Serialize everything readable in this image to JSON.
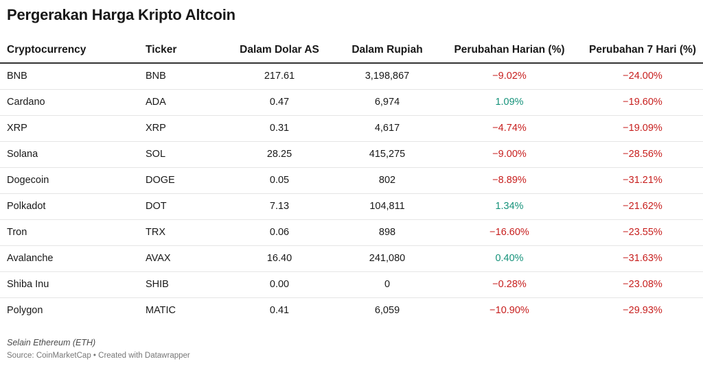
{
  "title": "Pergerakan Harga Kripto Altcoin",
  "columns": [
    "Cryptocurrency",
    "Ticker",
    "Dalam Dolar AS",
    "Dalam Rupiah",
    "Perubahan Harian (%)",
    "Perubahan 7 Hari (%)"
  ],
  "rows": [
    {
      "name": "BNB",
      "ticker": "BNB",
      "usd": "217.61",
      "idr": "3,198,867",
      "daily": "−9.02%",
      "weekly": "−24.00%"
    },
    {
      "name": "Cardano",
      "ticker": "ADA",
      "usd": "0.47",
      "idr": "6,974",
      "daily": "1.09%",
      "weekly": "−19.60%"
    },
    {
      "name": "XRP",
      "ticker": "XRP",
      "usd": "0.31",
      "idr": "4,617",
      "daily": "−4.74%",
      "weekly": "−19.09%"
    },
    {
      "name": "Solana",
      "ticker": "SOL",
      "usd": "28.25",
      "idr": "415,275",
      "daily": "−9.00%",
      "weekly": "−28.56%"
    },
    {
      "name": "Dogecoin",
      "ticker": "DOGE",
      "usd": "0.05",
      "idr": "802",
      "daily": "−8.89%",
      "weekly": "−31.21%"
    },
    {
      "name": "Polkadot",
      "ticker": "DOT",
      "usd": "7.13",
      "idr": "104,811",
      "daily": "1.34%",
      "weekly": "−21.62%"
    },
    {
      "name": "Tron",
      "ticker": "TRX",
      "usd": "0.06",
      "idr": "898",
      "daily": "−16.60%",
      "weekly": "−23.55%"
    },
    {
      "name": "Avalanche",
      "ticker": "AVAX",
      "usd": "16.40",
      "idr": "241,080",
      "daily": "0.40%",
      "weekly": "−31.63%"
    },
    {
      "name": "Shiba Inu",
      "ticker": "SHIB",
      "usd": "0.00",
      "idr": "0",
      "daily": "−0.28%",
      "weekly": "−23.08%"
    },
    {
      "name": "Polygon",
      "ticker": "MATIC",
      "usd": "0.41",
      "idr": "6,059",
      "daily": "−10.90%",
      "weekly": "−29.93%"
    }
  ],
  "note": "Selain Ethereum (ETH)",
  "source": "Source: CoinMarketCap • Created with Datawrapper",
  "colors": {
    "negative": "#c71e1d",
    "positive": "#15927a",
    "header_rule": "#333333",
    "row_rule": "#e5e5e5"
  },
  "chart_data": {
    "type": "table",
    "title": "Pergerakan Harga Kripto Altcoin",
    "columns": [
      "Cryptocurrency",
      "Ticker",
      "Dalam Dolar AS",
      "Dalam Rupiah",
      "Perubahan Harian (%)",
      "Perubahan 7 Hari (%)"
    ],
    "categories": [
      "BNB",
      "Cardano",
      "XRP",
      "Solana",
      "Dogecoin",
      "Polkadot",
      "Tron",
      "Avalanche",
      "Shiba Inu",
      "Polygon"
    ],
    "series": [
      {
        "name": "Dalam Dolar AS",
        "values": [
          217.61,
          0.47,
          0.31,
          28.25,
          0.05,
          7.13,
          0.06,
          16.4,
          0.0,
          0.41
        ]
      },
      {
        "name": "Dalam Rupiah",
        "values": [
          3198867,
          6974,
          4617,
          415275,
          802,
          104811,
          898,
          241080,
          0,
          6059
        ]
      },
      {
        "name": "Perubahan Harian (%)",
        "values": [
          -9.02,
          1.09,
          -4.74,
          -9.0,
          -8.89,
          1.34,
          -16.6,
          0.4,
          -0.28,
          -10.9
        ]
      },
      {
        "name": "Perubahan 7 Hari (%)",
        "values": [
          -24.0,
          -19.6,
          -19.09,
          -28.56,
          -31.21,
          -21.62,
          -23.55,
          -31.63,
          -23.08,
          -29.93
        ]
      }
    ]
  }
}
